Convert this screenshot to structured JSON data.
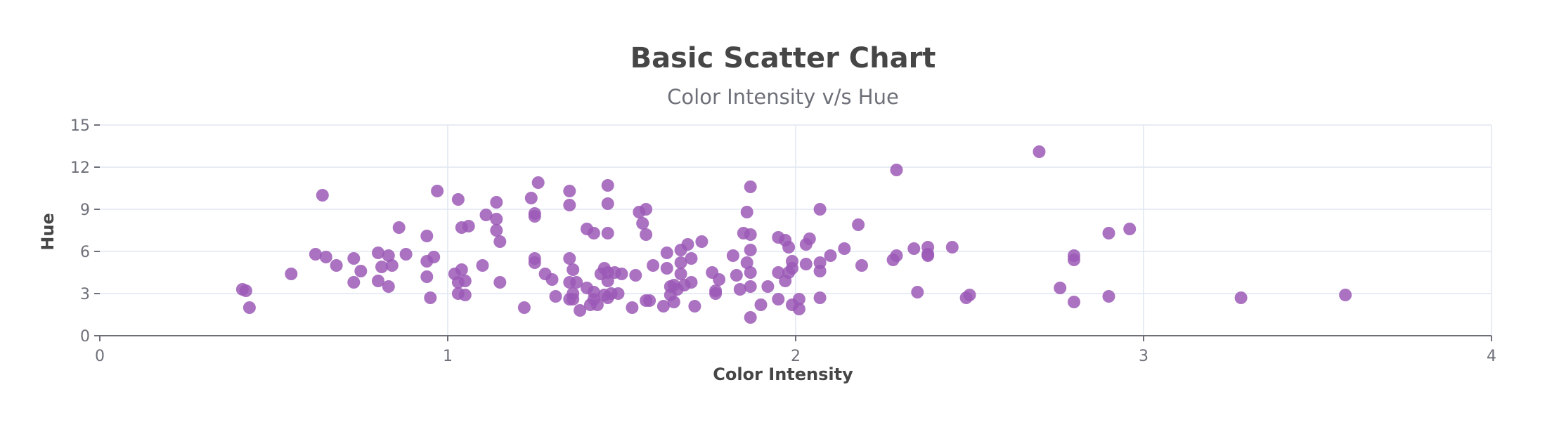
{
  "chart_data": {
    "type": "scatter",
    "title": "Basic Scatter Chart",
    "subtitle": "Color Intensity v/s Hue",
    "xlabel": "Color Intensity",
    "ylabel": "Hue",
    "xlim": [
      0,
      4
    ],
    "ylim": [
      0,
      15
    ],
    "x_ticks": [
      "0",
      "1",
      "2",
      "3",
      "4"
    ],
    "y_ticks": [
      "0",
      "3",
      "6",
      "9",
      "12",
      "15"
    ],
    "x_tick_values": [
      0,
      1,
      2,
      3,
      4
    ],
    "y_tick_values": [
      0,
      3,
      6,
      9,
      12,
      15
    ],
    "grid": true,
    "legend": "none",
    "colors": {
      "point": "#9b59b6",
      "grid": "#e0e6f1",
      "axis": "#6e7079"
    },
    "points": [
      [
        0.41,
        3.3
      ],
      [
        0.42,
        3.2
      ],
      [
        0.43,
        2.0
      ],
      [
        0.55,
        4.4
      ],
      [
        0.62,
        5.8
      ],
      [
        0.64,
        10.0
      ],
      [
        0.65,
        5.6
      ],
      [
        0.68,
        5.0
      ],
      [
        0.73,
        5.5
      ],
      [
        0.73,
        3.8
      ],
      [
        0.75,
        4.6
      ],
      [
        0.8,
        5.9
      ],
      [
        0.8,
        3.9
      ],
      [
        0.81,
        4.9
      ],
      [
        0.83,
        5.7
      ],
      [
        0.83,
        3.5
      ],
      [
        0.84,
        5.0
      ],
      [
        0.86,
        7.7
      ],
      [
        0.88,
        5.8
      ],
      [
        0.94,
        7.1
      ],
      [
        0.94,
        5.3
      ],
      [
        0.94,
        4.2
      ],
      [
        0.95,
        2.7
      ],
      [
        0.96,
        5.6
      ],
      [
        0.97,
        10.3
      ],
      [
        1.02,
        4.4
      ],
      [
        1.03,
        9.7
      ],
      [
        1.03,
        3.0
      ],
      [
        1.03,
        3.8
      ],
      [
        1.04,
        7.7
      ],
      [
        1.04,
        4.7
      ],
      [
        1.05,
        2.9
      ],
      [
        1.05,
        3.9
      ],
      [
        1.06,
        7.8
      ],
      [
        1.1,
        5.0
      ],
      [
        1.11,
        8.6
      ],
      [
        1.14,
        9.5
      ],
      [
        1.14,
        8.3
      ],
      [
        1.14,
        7.5
      ],
      [
        1.15,
        6.7
      ],
      [
        1.15,
        3.8
      ],
      [
        1.22,
        2.0
      ],
      [
        1.24,
        9.8
      ],
      [
        1.25,
        8.7
      ],
      [
        1.25,
        8.5
      ],
      [
        1.25,
        5.5
      ],
      [
        1.25,
        5.2
      ],
      [
        1.26,
        10.9
      ],
      [
        1.28,
        4.4
      ],
      [
        1.3,
        4.0
      ],
      [
        1.31,
        2.8
      ],
      [
        1.35,
        10.3
      ],
      [
        1.35,
        9.3
      ],
      [
        1.35,
        5.5
      ],
      [
        1.35,
        3.8
      ],
      [
        1.35,
        2.6
      ],
      [
        1.36,
        4.7
      ],
      [
        1.36,
        3.0
      ],
      [
        1.36,
        2.6
      ],
      [
        1.37,
        3.8
      ],
      [
        1.38,
        1.8
      ],
      [
        1.4,
        7.6
      ],
      [
        1.4,
        3.4
      ],
      [
        1.41,
        2.2
      ],
      [
        1.42,
        7.3
      ],
      [
        1.42,
        3.1
      ],
      [
        1.42,
        2.6
      ],
      [
        1.43,
        2.2
      ],
      [
        1.44,
        4.4
      ],
      [
        1.45,
        4.8
      ],
      [
        1.45,
        2.9
      ],
      [
        1.46,
        10.7
      ],
      [
        1.46,
        9.4
      ],
      [
        1.46,
        7.3
      ],
      [
        1.46,
        4.5
      ],
      [
        1.46,
        3.9
      ],
      [
        1.46,
        2.7
      ],
      [
        1.47,
        3.0
      ],
      [
        1.48,
        4.5
      ],
      [
        1.49,
        3.0
      ],
      [
        1.5,
        4.4
      ],
      [
        1.53,
        2.0
      ],
      [
        1.54,
        4.3
      ],
      [
        1.55,
        8.8
      ],
      [
        1.56,
        8.0
      ],
      [
        1.57,
        9.0
      ],
      [
        1.57,
        7.2
      ],
      [
        1.57,
        2.5
      ],
      [
        1.58,
        2.5
      ],
      [
        1.59,
        5.0
      ],
      [
        1.62,
        2.1
      ],
      [
        1.63,
        5.9
      ],
      [
        1.63,
        4.8
      ],
      [
        1.64,
        3.5
      ],
      [
        1.64,
        2.9
      ],
      [
        1.65,
        3.6
      ],
      [
        1.65,
        2.4
      ],
      [
        1.66,
        3.3
      ],
      [
        1.67,
        6.1
      ],
      [
        1.67,
        5.2
      ],
      [
        1.67,
        4.4
      ],
      [
        1.68,
        3.6
      ],
      [
        1.69,
        6.5
      ],
      [
        1.7,
        5.5
      ],
      [
        1.7,
        3.8
      ],
      [
        1.71,
        2.1
      ],
      [
        1.73,
        6.7
      ],
      [
        1.76,
        4.5
      ],
      [
        1.77,
        3.2
      ],
      [
        1.77,
        3.0
      ],
      [
        1.78,
        4.0
      ],
      [
        1.82,
        5.7
      ],
      [
        1.83,
        4.3
      ],
      [
        1.84,
        3.3
      ],
      [
        1.85,
        7.3
      ],
      [
        1.86,
        8.8
      ],
      [
        1.86,
        5.2
      ],
      [
        1.87,
        10.6
      ],
      [
        1.87,
        7.2
      ],
      [
        1.87,
        6.1
      ],
      [
        1.87,
        4.5
      ],
      [
        1.87,
        3.5
      ],
      [
        1.87,
        1.3
      ],
      [
        1.9,
        2.2
      ],
      [
        1.92,
        3.5
      ],
      [
        1.95,
        7.0
      ],
      [
        1.95,
        4.5
      ],
      [
        1.95,
        2.6
      ],
      [
        1.97,
        6.8
      ],
      [
        1.97,
        3.9
      ],
      [
        1.98,
        6.3
      ],
      [
        1.98,
        4.5
      ],
      [
        1.99,
        5.3
      ],
      [
        1.99,
        4.8
      ],
      [
        1.99,
        2.2
      ],
      [
        2.01,
        2.6
      ],
      [
        2.01,
        1.9
      ],
      [
        2.03,
        6.5
      ],
      [
        2.03,
        5.1
      ],
      [
        2.04,
        6.9
      ],
      [
        2.07,
        9.0
      ],
      [
        2.07,
        5.2
      ],
      [
        2.07,
        4.6
      ],
      [
        2.07,
        2.7
      ],
      [
        2.1,
        5.7
      ],
      [
        2.14,
        6.2
      ],
      [
        2.18,
        7.9
      ],
      [
        2.19,
        5.0
      ],
      [
        2.28,
        5.4
      ],
      [
        2.29,
        11.8
      ],
      [
        2.29,
        5.7
      ],
      [
        2.34,
        6.2
      ],
      [
        2.35,
        3.1
      ],
      [
        2.38,
        6.3
      ],
      [
        2.38,
        5.8
      ],
      [
        2.38,
        5.7
      ],
      [
        2.45,
        6.3
      ],
      [
        2.49,
        2.7
      ],
      [
        2.5,
        2.9
      ],
      [
        2.7,
        13.1
      ],
      [
        2.76,
        3.4
      ],
      [
        2.8,
        5.7
      ],
      [
        2.8,
        5.4
      ],
      [
        2.8,
        2.4
      ],
      [
        2.9,
        7.3
      ],
      [
        2.9,
        2.8
      ],
      [
        2.96,
        7.6
      ],
      [
        3.28,
        2.7
      ],
      [
        3.58,
        2.9
      ]
    ]
  }
}
